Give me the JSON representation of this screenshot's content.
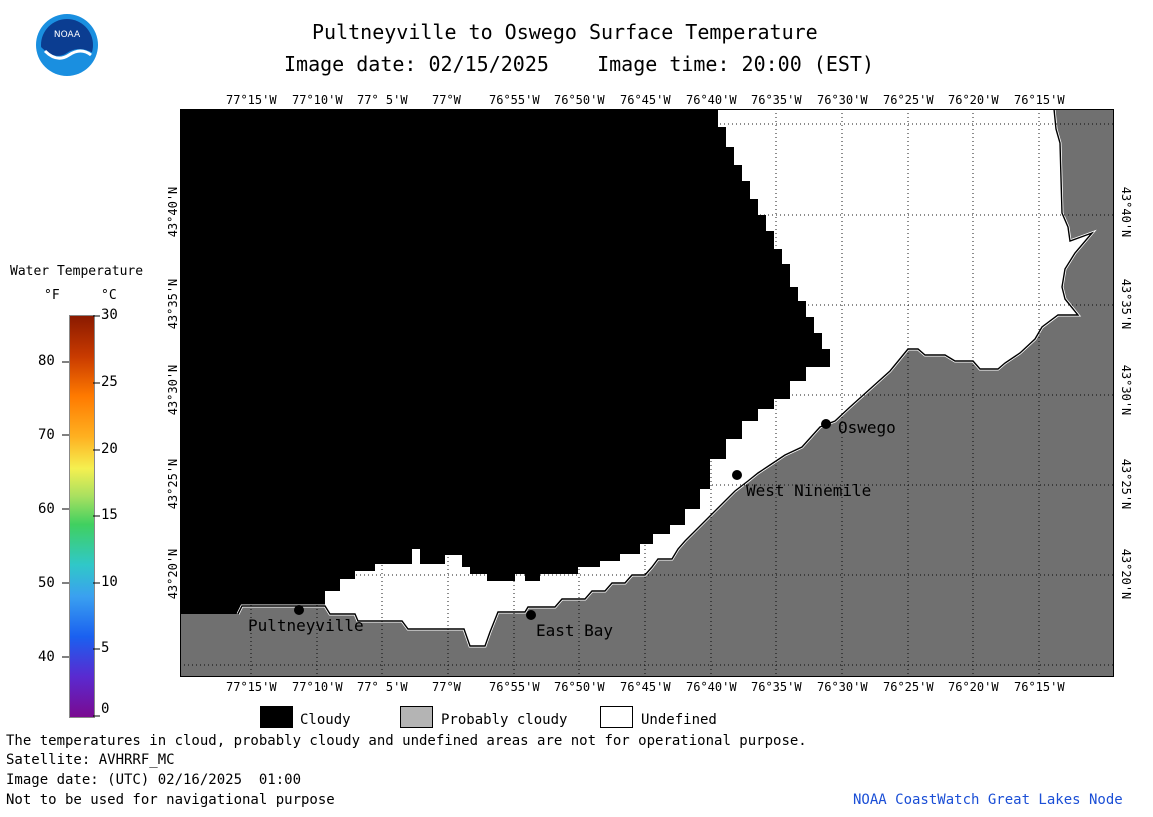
{
  "header": {
    "title": "Pultneyville to Oswego Surface Temperature",
    "date_line": "Image date: 02/15/2025    Image time: 20:00 (EST)",
    "logo_text": "NOAA"
  },
  "map": {
    "lon_labels": [
      "77°15'W",
      "77°10'W",
      "77° 5'W",
      "77°W",
      "76°55'W",
      "76°50'W",
      "76°45'W",
      "76°40'W",
      "76°35'W",
      "76°30'W",
      "76°25'W",
      "76°20'W",
      "76°15'W"
    ],
    "lat_labels": [
      "43°40'N",
      "43°35'N",
      "43°30'N",
      "43°25'N",
      "43°20'N"
    ],
    "places": [
      {
        "name": "Pultneyville"
      },
      {
        "name": "East Bay"
      },
      {
        "name": "West Ninemile"
      },
      {
        "name": "Oswego"
      }
    ],
    "colors": {
      "cloudy": "#000000",
      "land": "#707070",
      "undefined": "#ffffff",
      "grid": "#000000"
    }
  },
  "scale": {
    "title": "Water Temperature",
    "unit_f": "°F",
    "unit_c": "°C",
    "f_ticks": [
      "80",
      "70",
      "60",
      "50",
      "40"
    ],
    "c_ticks": [
      "30",
      "25",
      "20",
      "15",
      "10",
      "5",
      "0"
    ]
  },
  "legend": {
    "cloudy": "Cloudy",
    "probably_cloudy": "Probably cloudy",
    "undefined": "Undefined"
  },
  "footer": {
    "note": "The temperatures in cloud, probably cloudy and undefined areas are not for operational purpose.",
    "satellite": "Satellite: AVHRRF_MC",
    "utc_date": "Image date: (UTC) 02/16/2025  01:00",
    "nav_warning": "Not to be used for navigational purpose",
    "credit": "NOAA CoastWatch Great Lakes Node"
  }
}
